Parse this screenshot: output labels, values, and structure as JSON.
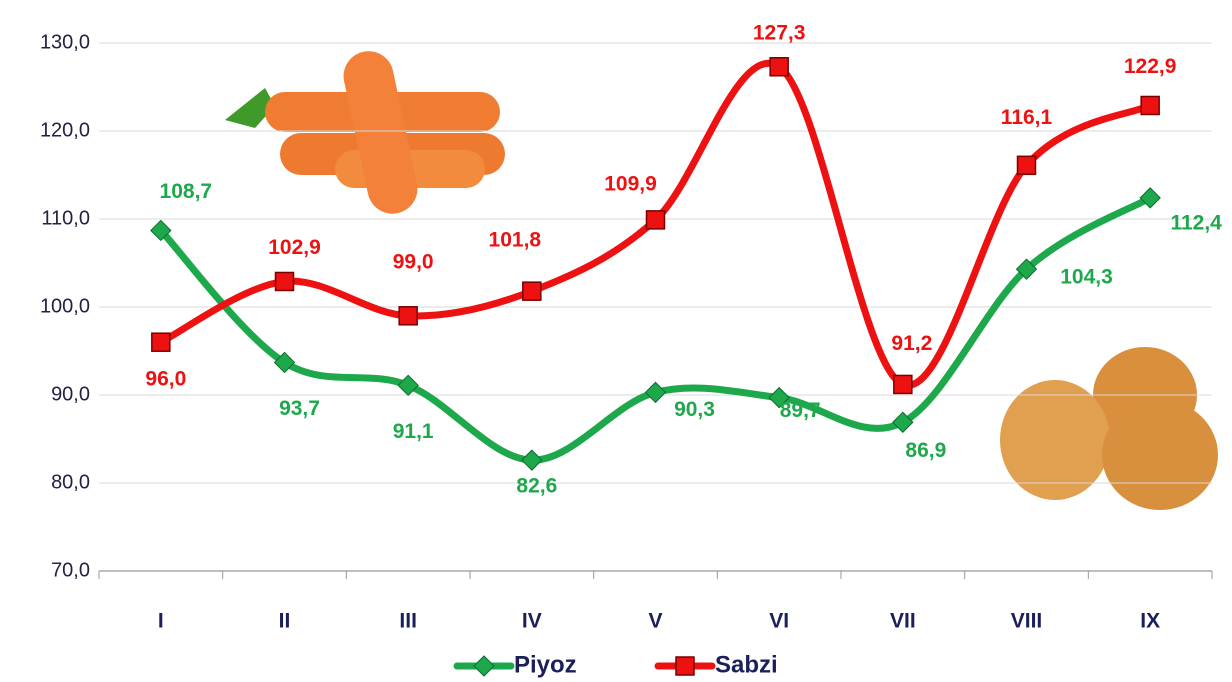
{
  "chart_data": {
    "type": "line",
    "categories": [
      "I",
      "II",
      "III",
      "IV",
      "V",
      "VI",
      "VII",
      "VIII",
      "IX"
    ],
    "series": [
      {
        "name": "Piyoz",
        "color": "#1ea84c",
        "marker": "diamond",
        "values": [
          108.7,
          93.7,
          91.1,
          82.6,
          90.3,
          89.7,
          86.9,
          104.3,
          112.4
        ],
        "value_labels": [
          "108,7",
          "93,7",
          "91,1",
          "82,6",
          "90,3",
          "89,7",
          "86,9",
          "104,3",
          "112,4"
        ]
      },
      {
        "name": "Sabzi",
        "color": "#ee1111",
        "marker": "square",
        "values": [
          96.0,
          102.9,
          99.0,
          101.8,
          109.9,
          127.3,
          91.2,
          116.1,
          122.9
        ],
        "value_labels": [
          "96,0",
          "102,9",
          "99,0",
          "101,8",
          "109,9",
          "127,3",
          "91,2",
          "116,1",
          "122,9"
        ]
      }
    ],
    "ylim": [
      70,
      130
    ],
    "yticks": [
      {
        "value": 70,
        "label": "70,0"
      },
      {
        "value": 80,
        "label": "80,0"
      },
      {
        "value": 90,
        "label": "90,0"
      },
      {
        "value": 100,
        "label": "100,0"
      },
      {
        "value": 110,
        "label": "110,0"
      },
      {
        "value": 120,
        "label": "120,0"
      },
      {
        "value": 130,
        "label": "130,0"
      }
    ],
    "grid": true,
    "legend": "bottom",
    "smooth": true
  }
}
